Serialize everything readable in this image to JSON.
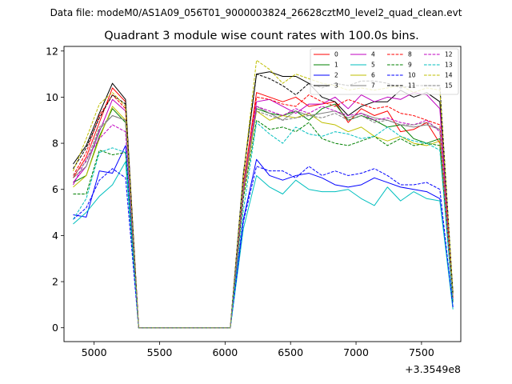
{
  "chart_data": {
    "type": "line",
    "suptitle": "Data file: modeM0/AS1A09_056T01_9000003824_26628cztM0_level2_quad_clean.evt",
    "title": "Quadrant 3 module wise count rates with 100.0s bins.",
    "xlabel": "",
    "ylabel": "",
    "offset_label": "+3.3549e8",
    "xlim": [
      4770,
      7800
    ],
    "ylim": [
      -0.6,
      12.2
    ],
    "xticks": [
      5000,
      5500,
      6000,
      6500,
      7000,
      7500
    ],
    "yticks": [
      0,
      2,
      4,
      6,
      8,
      10,
      12
    ],
    "grid": false,
    "legend_position": "top-right",
    "x": [
      4840,
      4940,
      5040,
      5140,
      5240,
      5340,
      6040,
      6140,
      6240,
      6340,
      6440,
      6540,
      6640,
      6740,
      6840,
      6940,
      7040,
      7140,
      7240,
      7340,
      7440,
      7540,
      7640,
      7740
    ],
    "series": [
      {
        "name": "0",
        "color": "#ff0000",
        "dash": "solid",
        "values": [
          6.5,
          7.4,
          8.9,
          10.4,
          9.8,
          0.0,
          0.0,
          6.2,
          10.2,
          10.0,
          9.8,
          10.0,
          9.6,
          9.7,
          9.8,
          8.9,
          9.5,
          9.2,
          9.4,
          8.5,
          8.6,
          8.9,
          8.0,
          1.3
        ]
      },
      {
        "name": "1",
        "color": "#008000",
        "dash": "solid",
        "values": [
          6.3,
          6.6,
          8.3,
          9.5,
          8.9,
          0.0,
          0.0,
          5.9,
          9.5,
          9.3,
          9.2,
          9.4,
          9.0,
          9.5,
          9.7,
          9.0,
          9.2,
          9.0,
          8.7,
          8.8,
          8.2,
          8.0,
          8.2,
          1.2
        ]
      },
      {
        "name": "2",
        "color": "#0000ff",
        "dash": "solid",
        "values": [
          4.9,
          4.8,
          6.8,
          6.7,
          7.9,
          0.0,
          0.0,
          4.7,
          7.3,
          6.6,
          6.4,
          6.6,
          6.7,
          6.5,
          6.2,
          6.1,
          6.2,
          6.5,
          6.3,
          6.1,
          6.0,
          5.9,
          5.6,
          0.9
        ]
      },
      {
        "name": "3",
        "color": "#000000",
        "dash": "solid",
        "values": [
          7.1,
          7.9,
          9.3,
          10.6,
          9.9,
          0.0,
          0.0,
          6.7,
          11.0,
          11.1,
          10.9,
          10.9,
          10.6,
          10.0,
          9.8,
          9.2,
          9.6,
          9.8,
          9.8,
          10.3,
          10.0,
          10.2,
          9.8,
          1.5
        ]
      },
      {
        "name": "4",
        "color": "#c000c0",
        "dash": "solid",
        "values": [
          6.3,
          7.0,
          8.5,
          9.9,
          9.4,
          0.0,
          0.0,
          6.0,
          9.8,
          9.9,
          9.6,
          9.3,
          9.7,
          9.7,
          10.0,
          9.5,
          10.1,
          9.8,
          10.0,
          9.9,
          10.2,
          10.1,
          9.5,
          1.3
        ]
      },
      {
        "name": "5",
        "color": "#00bfbf",
        "dash": "solid",
        "values": [
          4.5,
          5.0,
          5.7,
          6.2,
          7.2,
          0.0,
          0.0,
          4.3,
          6.6,
          6.1,
          5.8,
          6.4,
          6.0,
          5.9,
          5.9,
          6.0,
          5.6,
          5.3,
          6.1,
          5.5,
          5.9,
          5.6,
          5.5,
          0.8
        ]
      },
      {
        "name": "6",
        "color": "#bfbf00",
        "dash": "solid",
        "values": [
          6.1,
          6.6,
          8.2,
          9.6,
          9.0,
          0.0,
          0.0,
          5.8,
          9.4,
          9.0,
          9.2,
          9.1,
          9.3,
          8.9,
          8.8,
          8.5,
          8.7,
          8.3,
          8.1,
          8.3,
          8.0,
          7.9,
          8.1,
          1.2
        ]
      },
      {
        "name": "7",
        "color": "#808080",
        "dash": "solid",
        "values": [
          6.5,
          7.0,
          8.6,
          9.2,
          9.0,
          0.0,
          0.0,
          6.0,
          9.6,
          9.3,
          9.0,
          9.4,
          9.2,
          9.3,
          9.4,
          9.1,
          9.3,
          9.1,
          9.0,
          8.8,
          8.7,
          8.8,
          8.6,
          1.2
        ]
      },
      {
        "name": "8",
        "color": "#ff0000",
        "dash": "dashed",
        "values": [
          6.6,
          7.6,
          9.2,
          10.1,
          9.5,
          0.0,
          0.0,
          6.3,
          10.0,
          9.9,
          9.7,
          9.6,
          10.1,
          9.8,
          9.6,
          9.9,
          9.7,
          9.5,
          9.6,
          9.3,
          9.2,
          9.0,
          8.8,
          1.3
        ]
      },
      {
        "name": "9",
        "color": "#008000",
        "dash": "dashed",
        "values": [
          5.8,
          5.8,
          7.7,
          7.5,
          7.6,
          0.0,
          0.0,
          5.6,
          9.0,
          8.6,
          8.7,
          8.5,
          8.9,
          8.2,
          8.0,
          7.9,
          8.1,
          8.3,
          7.9,
          8.2,
          7.9,
          8.0,
          7.9,
          1.1
        ]
      },
      {
        "name": "10",
        "color": "#0000ff",
        "dash": "dashed",
        "values": [
          4.7,
          5.2,
          6.4,
          6.9,
          6.5,
          0.0,
          0.0,
          4.6,
          7.0,
          6.8,
          6.8,
          6.5,
          7.0,
          6.6,
          6.8,
          6.6,
          6.7,
          6.9,
          6.6,
          6.2,
          6.2,
          6.3,
          6.0,
          0.9
        ]
      },
      {
        "name": "11",
        "color": "#000000",
        "dash": "dashed",
        "values": [
          6.9,
          7.8,
          9.1,
          10.1,
          9.7,
          0.0,
          0.0,
          6.6,
          11.0,
          10.8,
          10.5,
          10.1,
          10.6,
          10.4,
          10.6,
          10.5,
          10.7,
          10.7,
          10.6,
          10.4,
          10.5,
          10.5,
          10.5,
          1.5
        ]
      },
      {
        "name": "12",
        "color": "#c000c0",
        "dash": "dashed",
        "values": [
          6.2,
          7.3,
          8.2,
          8.8,
          8.5,
          0.0,
          0.0,
          5.9,
          9.6,
          9.4,
          9.2,
          9.5,
          9.3,
          9.6,
          9.4,
          9.2,
          9.3,
          9.0,
          9.1,
          8.9,
          8.8,
          9.0,
          8.5,
          1.2
        ]
      },
      {
        "name": "13",
        "color": "#00bfbf",
        "dash": "dashed",
        "values": [
          4.7,
          5.6,
          7.6,
          7.8,
          7.6,
          0.0,
          0.0,
          5.1,
          8.9,
          8.4,
          8.0,
          8.7,
          8.4,
          8.3,
          8.5,
          8.4,
          8.2,
          8.3,
          8.7,
          8.3,
          8.1,
          8.0,
          7.7,
          1.1
        ]
      },
      {
        "name": "14",
        "color": "#bfbf00",
        "dash": "dashed",
        "values": [
          6.8,
          8.2,
          9.7,
          10.2,
          9.6,
          0.0,
          0.0,
          6.6,
          11.6,
          11.2,
          10.6,
          11.0,
          10.8,
          10.6,
          10.5,
          10.3,
          10.4,
          10.3,
          10.4,
          10.5,
          10.2,
          10.4,
          10.3,
          1.5
        ]
      },
      {
        "name": "15",
        "color": "#808080",
        "dash": "dashed",
        "values": [
          6.6,
          7.2,
          8.7,
          9.2,
          9.0,
          0.0,
          0.0,
          6.2,
          9.4,
          9.2,
          9.0,
          9.1,
          9.2,
          9.1,
          9.3,
          9.0,
          9.2,
          8.9,
          9.0,
          8.8,
          8.8,
          8.9,
          8.6,
          1.3
        ]
      }
    ]
  }
}
